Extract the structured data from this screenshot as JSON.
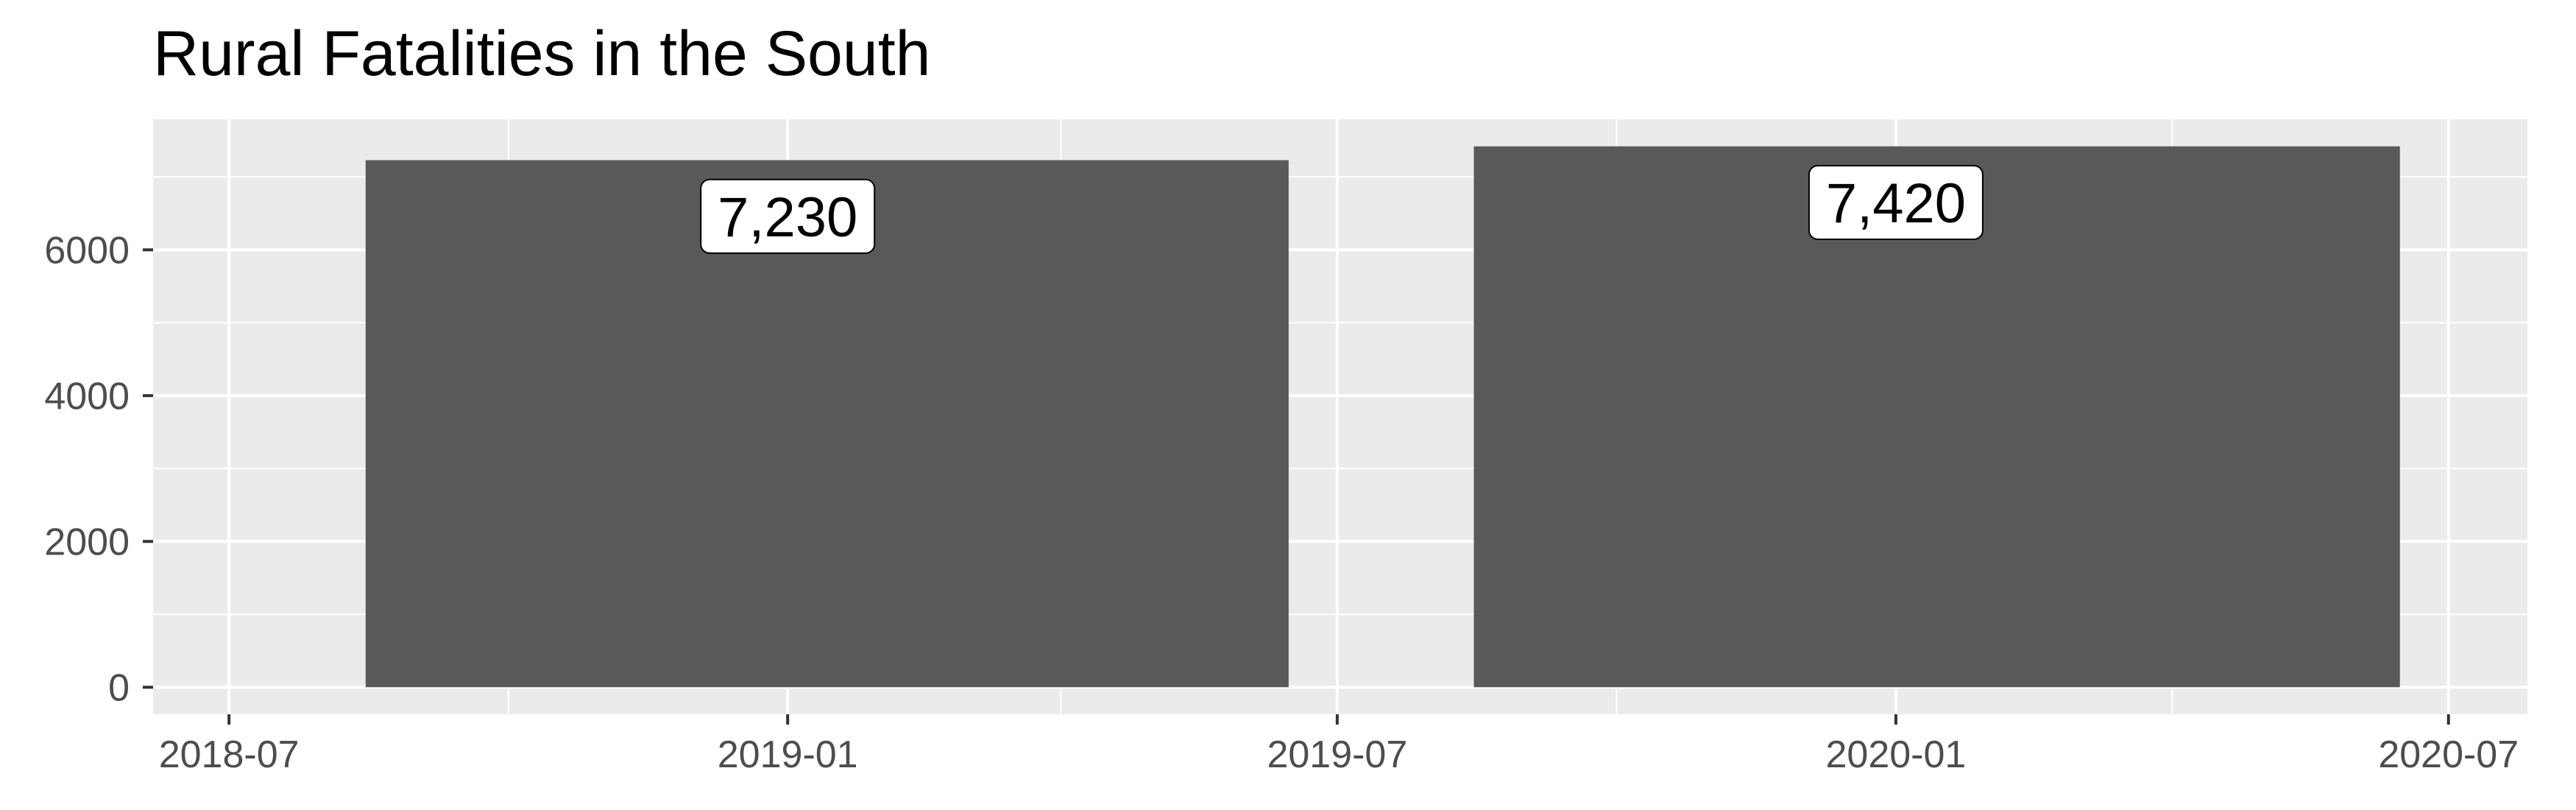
{
  "chart_data": {
    "type": "bar",
    "title": "Rural Fatalities in the South",
    "xlabel": "",
    "ylabel": "",
    "categories": [
      "2019-01",
      "2020-01"
    ],
    "values": [
      7230,
      7420
    ],
    "data_labels": [
      "7,230",
      "7,420"
    ],
    "bar_periods": [
      [
        "2018-08-15",
        "2019-06-15"
      ],
      [
        "2019-08-15",
        "2020-06-15"
      ]
    ],
    "x_ticks": [
      "2018-07",
      "2019-01",
      "2019-07",
      "2020-01",
      "2020-07"
    ],
    "x_minor_ticks": [
      "2018-10",
      "2019-04",
      "2019-10",
      "2020-04"
    ],
    "x_range": [
      "2018-06-06",
      "2020-07-27"
    ],
    "y_ticks": [
      0,
      2000,
      4000,
      6000
    ],
    "y_tick_labels": [
      "0",
      "2000",
      "4000",
      "6000"
    ],
    "y_minor_ticks": [
      1000,
      3000,
      5000,
      7000
    ],
    "ylim": [
      -371,
      7791
    ],
    "grid": true,
    "legend": "none",
    "colors": {
      "bar": "#595959",
      "panel_background": "#ebebeb",
      "grid_line": "#ffffff",
      "label_fill": "#ffffff",
      "label_border": "#000000"
    }
  }
}
